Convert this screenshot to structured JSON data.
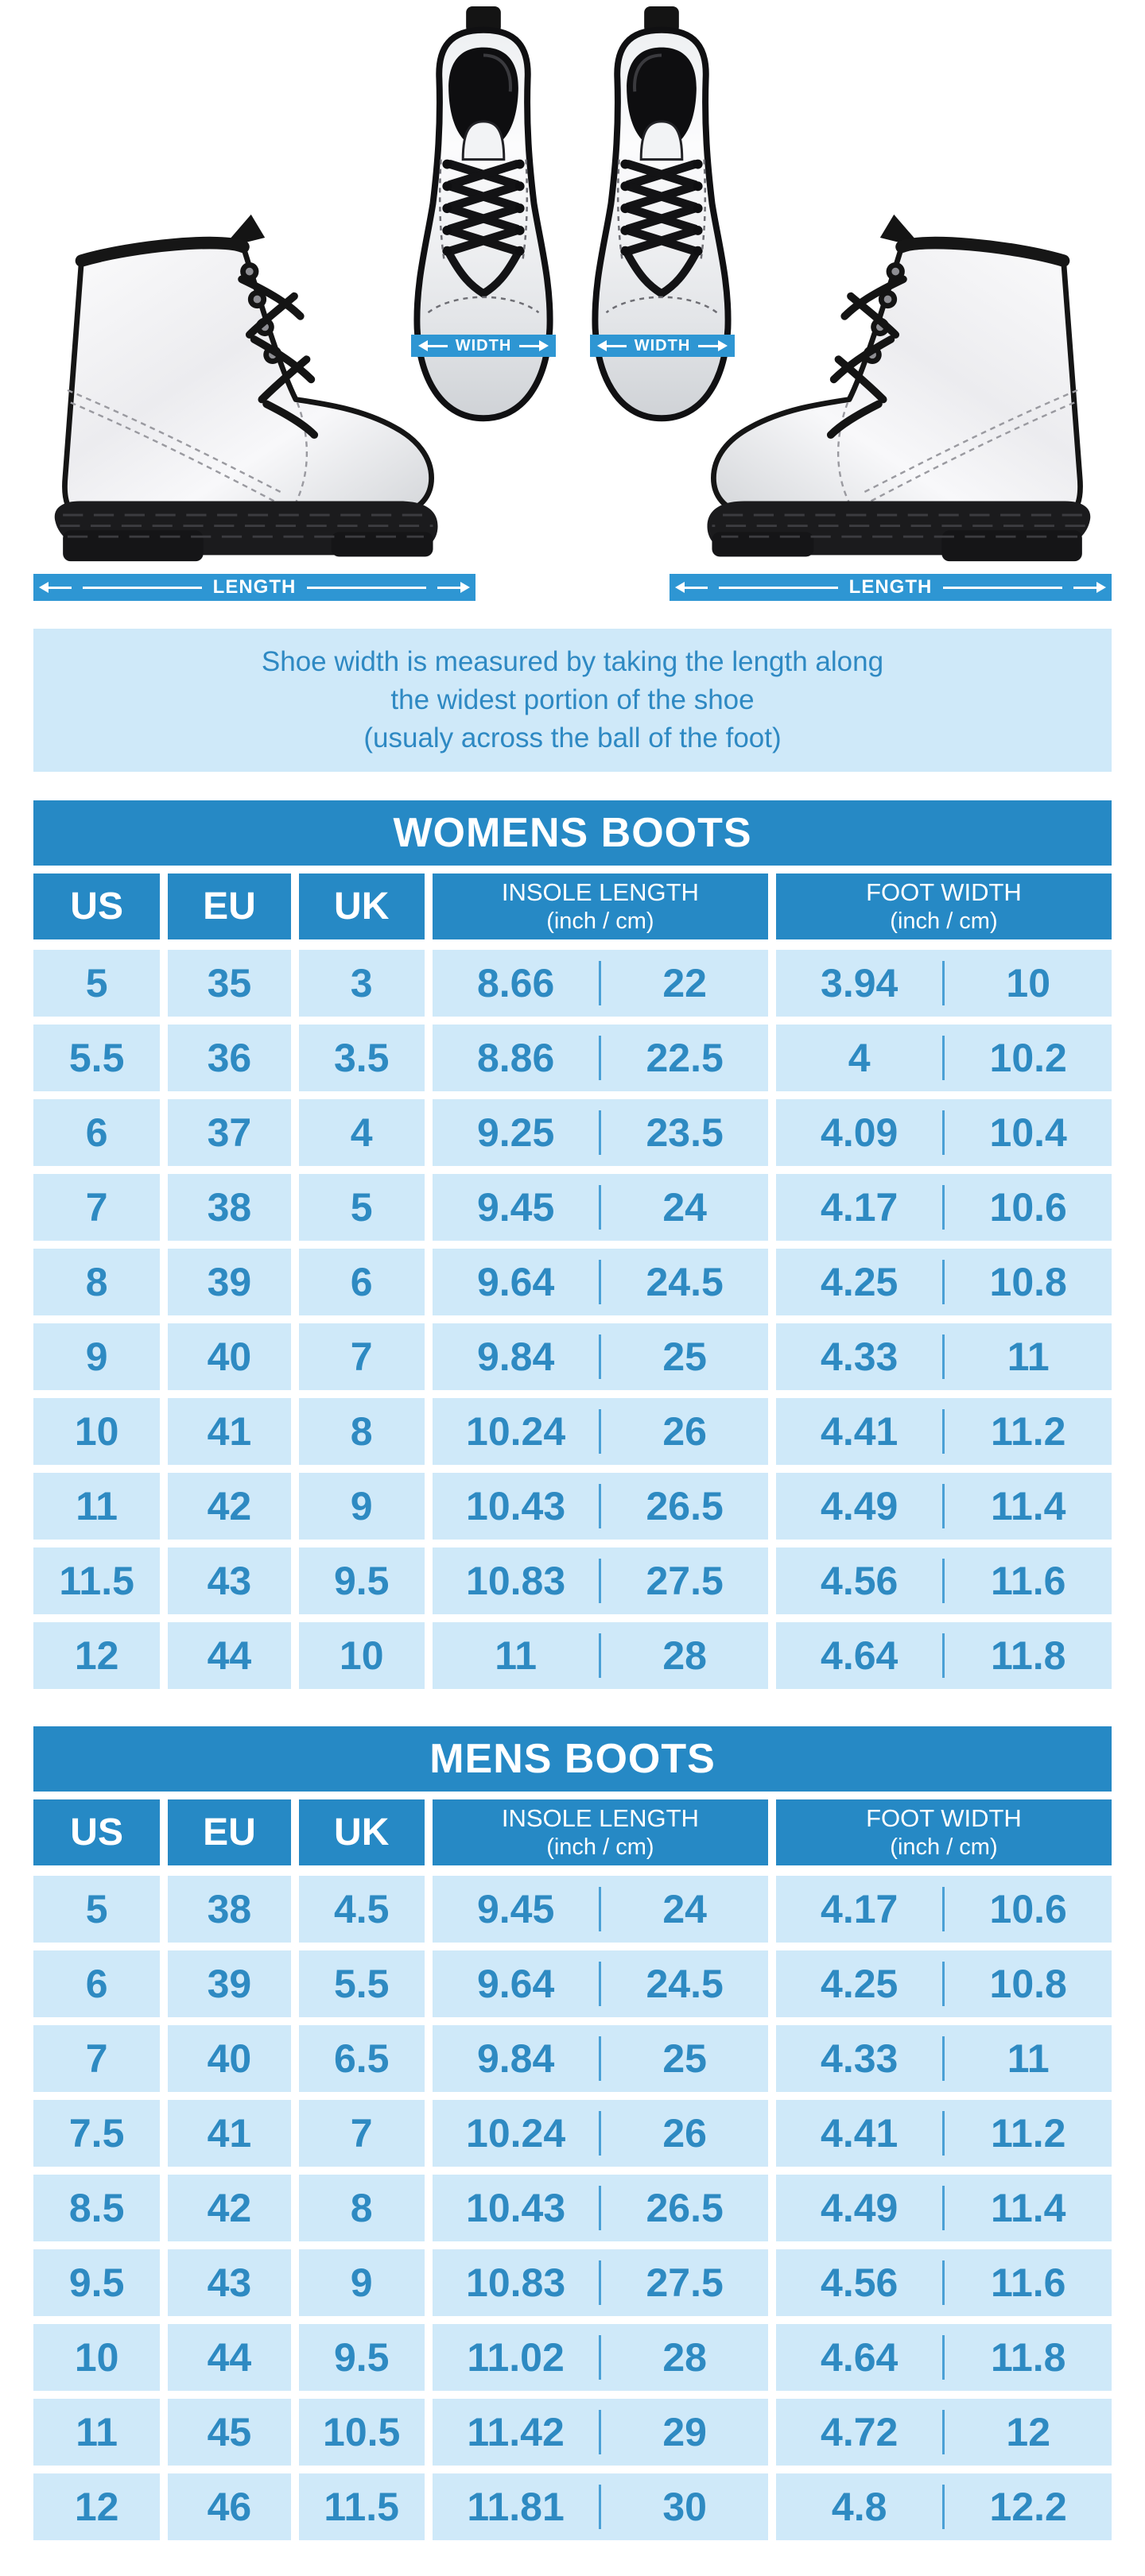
{
  "hero": {
    "width_label_left": "WIDTH",
    "width_label_right": "WIDTH",
    "length_label_left": "LENGTH",
    "length_label_right": "LENGTH"
  },
  "note": {
    "line1": "Shoe width is measured by taking the length along",
    "line2": "the widest portion of the shoe",
    "line3": "(usualy across the ball of the foot)"
  },
  "colors": {
    "primary_blue": "#2689c5",
    "bar_blue": "#2e96d3",
    "light_cell_blue": "#cfe9f9",
    "text_blue": "#2e8ac2",
    "white": "#ffffff"
  },
  "tables": [
    {
      "title": "WOMENS BOOTS",
      "headers": {
        "us": "US",
        "eu": "EU",
        "uk": "UK",
        "insole_title": "INSOLE LENGTH",
        "insole_sub": "(inch / cm)",
        "foot_title": "FOOT WIDTH",
        "foot_sub": "(inch / cm)"
      },
      "rows": [
        [
          "5",
          "35",
          "3",
          "8.66",
          "22",
          "3.94",
          "10"
        ],
        [
          "5.5",
          "36",
          "3.5",
          "8.86",
          "22.5",
          "4",
          "10.2"
        ],
        [
          "6",
          "37",
          "4",
          "9.25",
          "23.5",
          "4.09",
          "10.4"
        ],
        [
          "7",
          "38",
          "5",
          "9.45",
          "24",
          "4.17",
          "10.6"
        ],
        [
          "8",
          "39",
          "6",
          "9.64",
          "24.5",
          "4.25",
          "10.8"
        ],
        [
          "9",
          "40",
          "7",
          "9.84",
          "25",
          "4.33",
          "11"
        ],
        [
          "10",
          "41",
          "8",
          "10.24",
          "26",
          "4.41",
          "11.2"
        ],
        [
          "11",
          "42",
          "9",
          "10.43",
          "26.5",
          "4.49",
          "11.4"
        ],
        [
          "11.5",
          "43",
          "9.5",
          "10.83",
          "27.5",
          "4.56",
          "11.6"
        ],
        [
          "12",
          "44",
          "10",
          "11",
          "28",
          "4.64",
          "11.8"
        ]
      ]
    },
    {
      "title": "MENS BOOTS",
      "headers": {
        "us": "US",
        "eu": "EU",
        "uk": "UK",
        "insole_title": "INSOLE LENGTH",
        "insole_sub": "(inch / cm)",
        "foot_title": "FOOT WIDTH",
        "foot_sub": "(inch / cm)"
      },
      "rows": [
        [
          "5",
          "38",
          "4.5",
          "9.45",
          "24",
          "4.17",
          "10.6"
        ],
        [
          "6",
          "39",
          "5.5",
          "9.64",
          "24.5",
          "4.25",
          "10.8"
        ],
        [
          "7",
          "40",
          "6.5",
          "9.84",
          "25",
          "4.33",
          "11"
        ],
        [
          "7.5",
          "41",
          "7",
          "10.24",
          "26",
          "4.41",
          "11.2"
        ],
        [
          "8.5",
          "42",
          "8",
          "10.43",
          "26.5",
          "4.49",
          "11.4"
        ],
        [
          "9.5",
          "43",
          "9",
          "10.83",
          "27.5",
          "4.56",
          "11.6"
        ],
        [
          "10",
          "44",
          "9.5",
          "11.02",
          "28",
          "4.64",
          "11.8"
        ],
        [
          "11",
          "45",
          "10.5",
          "11.42",
          "29",
          "4.72",
          "12"
        ],
        [
          "12",
          "46",
          "11.5",
          "11.81",
          "30",
          "4.8",
          "12.2"
        ]
      ]
    }
  ]
}
